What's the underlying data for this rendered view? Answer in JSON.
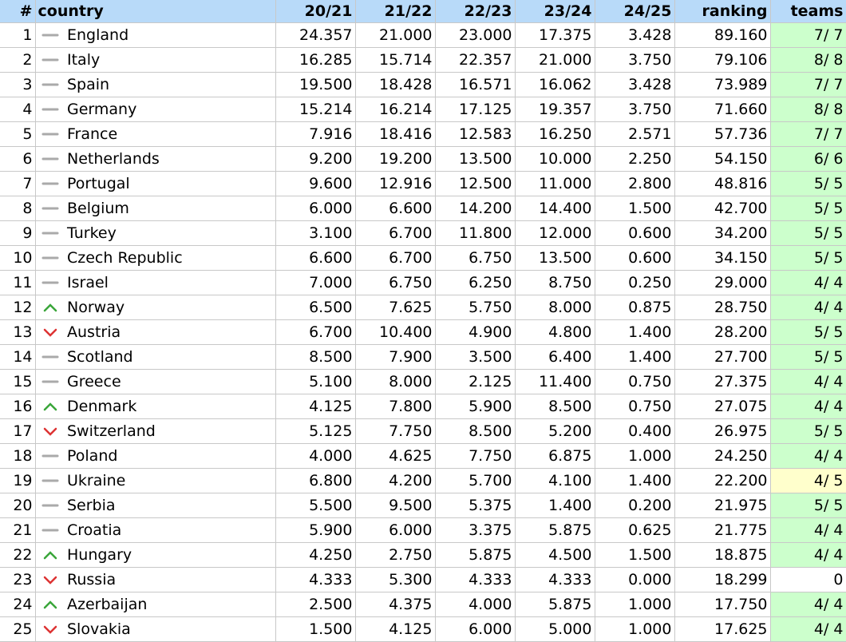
{
  "table": {
    "header": [
      "#",
      "country",
      "20/21",
      "21/22",
      "22/23",
      "23/24",
      "24/25",
      "ranking",
      "teams"
    ],
    "rows": [
      {
        "trend": "flat",
        "teams_color": "#ccffcc",
        "cells": [
          "1",
          "England",
          "24.357",
          "21.000",
          "23.000",
          "17.375",
          "3.428",
          "89.160",
          "7/ 7"
        ]
      },
      {
        "trend": "flat",
        "teams_color": "#ccffcc",
        "cells": [
          "2",
          "Italy",
          "16.285",
          "15.714",
          "22.357",
          "21.000",
          "3.750",
          "79.106",
          "8/ 8"
        ]
      },
      {
        "trend": "flat",
        "teams_color": "#ccffcc",
        "cells": [
          "3",
          "Spain",
          "19.500",
          "18.428",
          "16.571",
          "16.062",
          "3.428",
          "73.989",
          "7/ 7"
        ]
      },
      {
        "trend": "flat",
        "teams_color": "#ccffcc",
        "cells": [
          "4",
          "Germany",
          "15.214",
          "16.214",
          "17.125",
          "19.357",
          "3.750",
          "71.660",
          "8/ 8"
        ]
      },
      {
        "trend": "flat",
        "teams_color": "#ccffcc",
        "cells": [
          "5",
          "France",
          "7.916",
          "18.416",
          "12.583",
          "16.250",
          "2.571",
          "57.736",
          "7/ 7"
        ]
      },
      {
        "trend": "flat",
        "teams_color": "#ccffcc",
        "cells": [
          "6",
          "Netherlands",
          "9.200",
          "19.200",
          "13.500",
          "10.000",
          "2.250",
          "54.150",
          "6/ 6"
        ]
      },
      {
        "trend": "flat",
        "teams_color": "#ccffcc",
        "cells": [
          "7",
          "Portugal",
          "9.600",
          "12.916",
          "12.500",
          "11.000",
          "2.800",
          "48.816",
          "5/ 5"
        ]
      },
      {
        "trend": "flat",
        "teams_color": "#ccffcc",
        "cells": [
          "8",
          "Belgium",
          "6.000",
          "6.600",
          "14.200",
          "14.400",
          "1.500",
          "42.700",
          "5/ 5"
        ]
      },
      {
        "trend": "flat",
        "teams_color": "#ccffcc",
        "cells": [
          "9",
          "Turkey",
          "3.100",
          "6.700",
          "11.800",
          "12.000",
          "0.600",
          "34.200",
          "5/ 5"
        ]
      },
      {
        "trend": "flat",
        "teams_color": "#ccffcc",
        "cells": [
          "10",
          "Czech Republic",
          "6.600",
          "6.700",
          "6.750",
          "13.500",
          "0.600",
          "34.150",
          "5/ 5"
        ]
      },
      {
        "trend": "flat",
        "teams_color": "#ccffcc",
        "cells": [
          "11",
          "Israel",
          "7.000",
          "6.750",
          "6.250",
          "8.750",
          "0.250",
          "29.000",
          "4/ 4"
        ]
      },
      {
        "trend": "up",
        "teams_color": "#ccffcc",
        "cells": [
          "12",
          "Norway",
          "6.500",
          "7.625",
          "5.750",
          "8.000",
          "0.875",
          "28.750",
          "4/ 4"
        ]
      },
      {
        "trend": "down",
        "teams_color": "#ccffcc",
        "cells": [
          "13",
          "Austria",
          "6.700",
          "10.400",
          "4.900",
          "4.800",
          "1.400",
          "28.200",
          "5/ 5"
        ]
      },
      {
        "trend": "flat",
        "teams_color": "#ccffcc",
        "cells": [
          "14",
          "Scotland",
          "8.500",
          "7.900",
          "3.500",
          "6.400",
          "1.400",
          "27.700",
          "5/ 5"
        ]
      },
      {
        "trend": "flat",
        "teams_color": "#ccffcc",
        "cells": [
          "15",
          "Greece",
          "5.100",
          "8.000",
          "2.125",
          "11.400",
          "0.750",
          "27.375",
          "4/ 4"
        ]
      },
      {
        "trend": "up",
        "teams_color": "#ccffcc",
        "cells": [
          "16",
          "Denmark",
          "4.125",
          "7.800",
          "5.900",
          "8.500",
          "0.750",
          "27.075",
          "4/ 4"
        ]
      },
      {
        "trend": "down",
        "teams_color": "#ccffcc",
        "cells": [
          "17",
          "Switzerland",
          "5.125",
          "7.750",
          "8.500",
          "5.200",
          "0.400",
          "26.975",
          "5/ 5"
        ]
      },
      {
        "trend": "flat",
        "teams_color": "#ccffcc",
        "cells": [
          "18",
          "Poland",
          "4.000",
          "4.625",
          "7.750",
          "6.875",
          "1.000",
          "24.250",
          "4/ 4"
        ]
      },
      {
        "trend": "flat",
        "teams_color": "#ffffcc",
        "cells": [
          "19",
          "Ukraine",
          "6.800",
          "4.200",
          "5.700",
          "4.100",
          "1.400",
          "22.200",
          "4/ 5"
        ]
      },
      {
        "trend": "flat",
        "teams_color": "#ccffcc",
        "cells": [
          "20",
          "Serbia",
          "5.500",
          "9.500",
          "5.375",
          "1.400",
          "0.200",
          "21.975",
          "5/ 5"
        ]
      },
      {
        "trend": "flat",
        "teams_color": "#ccffcc",
        "cells": [
          "21",
          "Croatia",
          "5.900",
          "6.000",
          "3.375",
          "5.875",
          "0.625",
          "21.775",
          "4/ 4"
        ]
      },
      {
        "trend": "up",
        "teams_color": "#ccffcc",
        "cells": [
          "22",
          "Hungary",
          "4.250",
          "2.750",
          "5.875",
          "4.500",
          "1.500",
          "18.875",
          "4/ 4"
        ]
      },
      {
        "trend": "down",
        "teams_color": "#ffffff",
        "cells": [
          "23",
          "Russia",
          "4.333",
          "5.300",
          "4.333",
          "4.333",
          "0.000",
          "18.299",
          "0"
        ]
      },
      {
        "trend": "up",
        "teams_color": "#ccffcc",
        "cells": [
          "24",
          "Azerbaijan",
          "2.500",
          "4.375",
          "4.000",
          "5.875",
          "1.000",
          "17.750",
          "4/ 4"
        ]
      },
      {
        "trend": "down",
        "teams_color": "#ccffcc",
        "cells": [
          "25",
          "Slovakia",
          "1.500",
          "4.125",
          "6.000",
          "5.000",
          "1.000",
          "17.625",
          "4/ 4"
        ]
      }
    ]
  }
}
